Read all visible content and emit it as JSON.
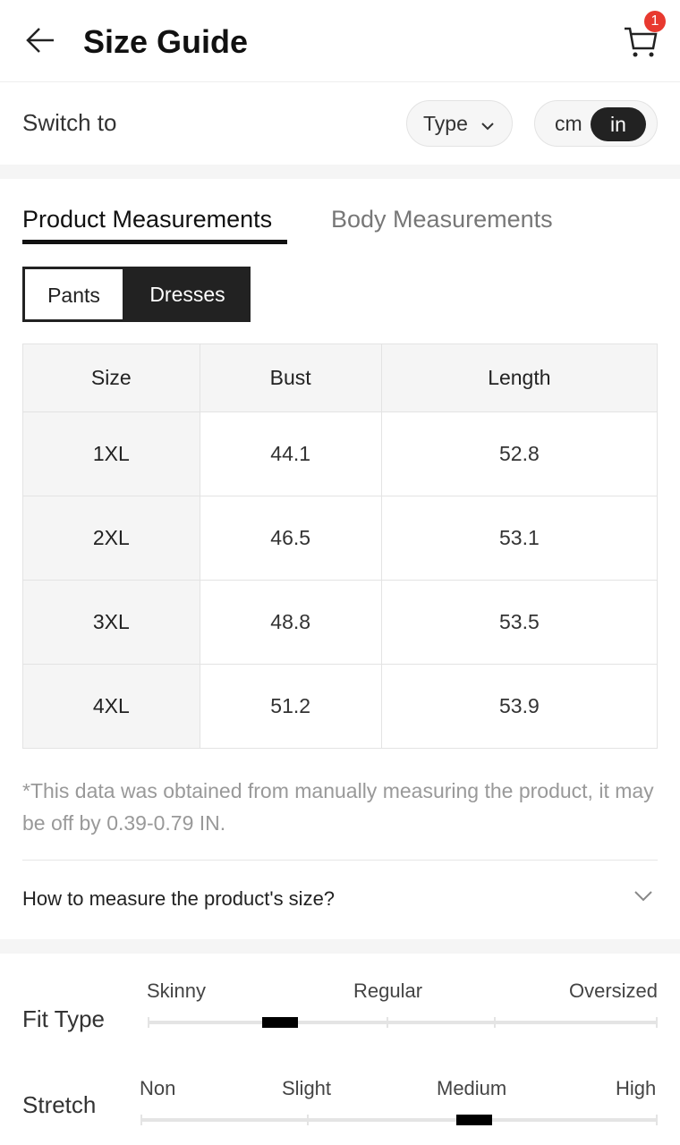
{
  "header": {
    "title": "Size Guide",
    "cart_count": "1"
  },
  "switch": {
    "label": "Switch to",
    "type_label": "Type",
    "units": [
      "cm",
      "in"
    ],
    "selected_unit": "in"
  },
  "tabs": [
    {
      "label": "Product Measurements",
      "active": true
    },
    {
      "label": "Body Measurements",
      "active": false
    }
  ],
  "categories": [
    {
      "label": "Pants",
      "active": false
    },
    {
      "label": "Dresses",
      "active": true
    }
  ],
  "table": {
    "headers": [
      "Size",
      "Bust",
      "Length"
    ],
    "rows": [
      [
        "1XL",
        "44.1",
        "52.8"
      ],
      [
        "2XL",
        "46.5",
        "53.1"
      ],
      [
        "3XL",
        "48.8",
        "53.5"
      ],
      [
        "4XL",
        "51.2",
        "53.9"
      ]
    ]
  },
  "note": "*This data was obtained from manually measuring the product, it may be off by 0.39-0.79 IN.",
  "how_to_measure": "How to measure the product's size?",
  "fit": {
    "label": "Fit Type",
    "scale": [
      "Skinny",
      "Regular",
      "Oversized"
    ],
    "value_fraction": 0.26
  },
  "stretch": {
    "label": "Stretch",
    "scale": [
      "Non",
      "Slight",
      "Medium",
      "High"
    ],
    "value_fraction": 0.645
  },
  "colors": {
    "badge": "#e8392f",
    "active": "#222222"
  }
}
